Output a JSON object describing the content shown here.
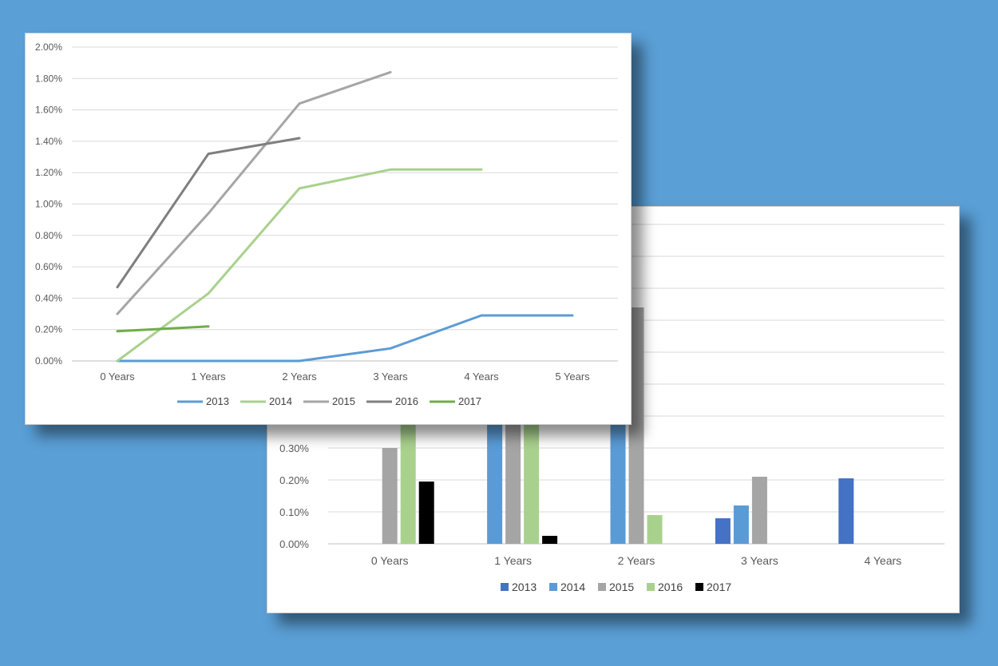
{
  "chart_data": [
    {
      "type": "bar",
      "categories": [
        "0 Years",
        "1 Years",
        "2 Years",
        "3 Years",
        "4 Years"
      ],
      "series": [
        {
          "name": "2013",
          "color": "#4472c4",
          "values": [
            null,
            null,
            null,
            0.0008,
            0.00205
          ]
        },
        {
          "name": "2014",
          "color": "#5b9bd5",
          "values": [
            null,
            0.0058,
            0.0059,
            0.0012,
            null
          ]
        },
        {
          "name": "2015",
          "color": "#a5a5a5",
          "values": [
            0.003,
            0.0063,
            0.0074,
            0.0021,
            null
          ]
        },
        {
          "name": "2016",
          "color": "#a9d18e",
          "values": [
            0.0045,
            0.0055,
            0.0009,
            null,
            null
          ]
        },
        {
          "name": "2017",
          "color": "#000000",
          "values": [
            0.00195,
            0.00025,
            null,
            null,
            null
          ]
        }
      ],
      "ylim": [
        0,
        0.01
      ],
      "yticks": [
        "0.00%",
        "0.10%",
        "0.20%",
        "0.30%"
      ],
      "legend_position": "bottom",
      "grid": true
    },
    {
      "type": "line",
      "x": [
        "0 Years",
        "1 Years",
        "2 Years",
        "3 Years",
        "4 Years",
        "5 Years"
      ],
      "series": [
        {
          "name": "2013",
          "color": "#5b9bd5",
          "values": [
            0.0,
            0.0,
            0.0,
            0.0008,
            0.0029,
            0.0029
          ]
        },
        {
          "name": "2014",
          "color": "#a9d18e",
          "values": [
            0.0,
            0.0043,
            0.011,
            0.0122,
            0.0122,
            null
          ]
        },
        {
          "name": "2015",
          "color": "#a5a5a5",
          "values": [
            0.003,
            0.0094,
            0.0164,
            0.0184,
            null,
            null
          ]
        },
        {
          "name": "2016",
          "color": "#7f7f7f",
          "values": [
            0.0047,
            0.0132,
            0.0142,
            null,
            null,
            null
          ]
        },
        {
          "name": "2017",
          "color": "#70ad47",
          "values": [
            0.0019,
            0.0022,
            null,
            null,
            null,
            null
          ]
        }
      ],
      "ylim": [
        0,
        0.02
      ],
      "yticks": [
        "0.00%",
        "0.20%",
        "0.40%",
        "0.60%",
        "0.80%",
        "1.00%",
        "1.20%",
        "1.40%",
        "1.60%",
        "1.80%",
        "2.00%"
      ],
      "legend_position": "bottom",
      "grid": true
    }
  ]
}
